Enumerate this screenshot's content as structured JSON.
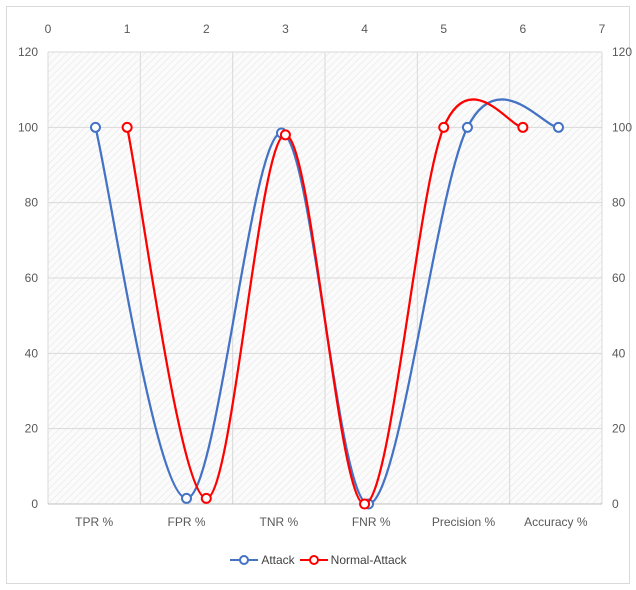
{
  "chart_data": {
    "type": "line",
    "smooth": true,
    "categories": [
      "TPR %",
      "FPR %",
      "TNR %",
      "FNR %",
      "Precision %",
      "Accuracy %"
    ],
    "x_top_ticks": [
      0,
      1,
      2,
      3,
      4,
      5,
      6,
      7
    ],
    "xlim_top": [
      0,
      7
    ],
    "y_ticks": [
      0,
      20,
      40,
      60,
      80,
      100,
      120
    ],
    "ylim": [
      0,
      120
    ],
    "grid": true,
    "legend": "bottom",
    "series": [
      {
        "name": "Attack",
        "color": "#4472c4",
        "x": [
          0.6,
          1.75,
          2.95,
          4.05,
          5.3,
          6.45
        ],
        "values": [
          100,
          1.5,
          98.5,
          0,
          100,
          100
        ]
      },
      {
        "name": "Normal-Attack",
        "color": "#ff0000",
        "x": [
          1.0,
          2.0,
          3.0,
          4.0,
          5.0,
          6.0
        ],
        "values": [
          100,
          1.5,
          98,
          0,
          100,
          100
        ]
      }
    ]
  }
}
